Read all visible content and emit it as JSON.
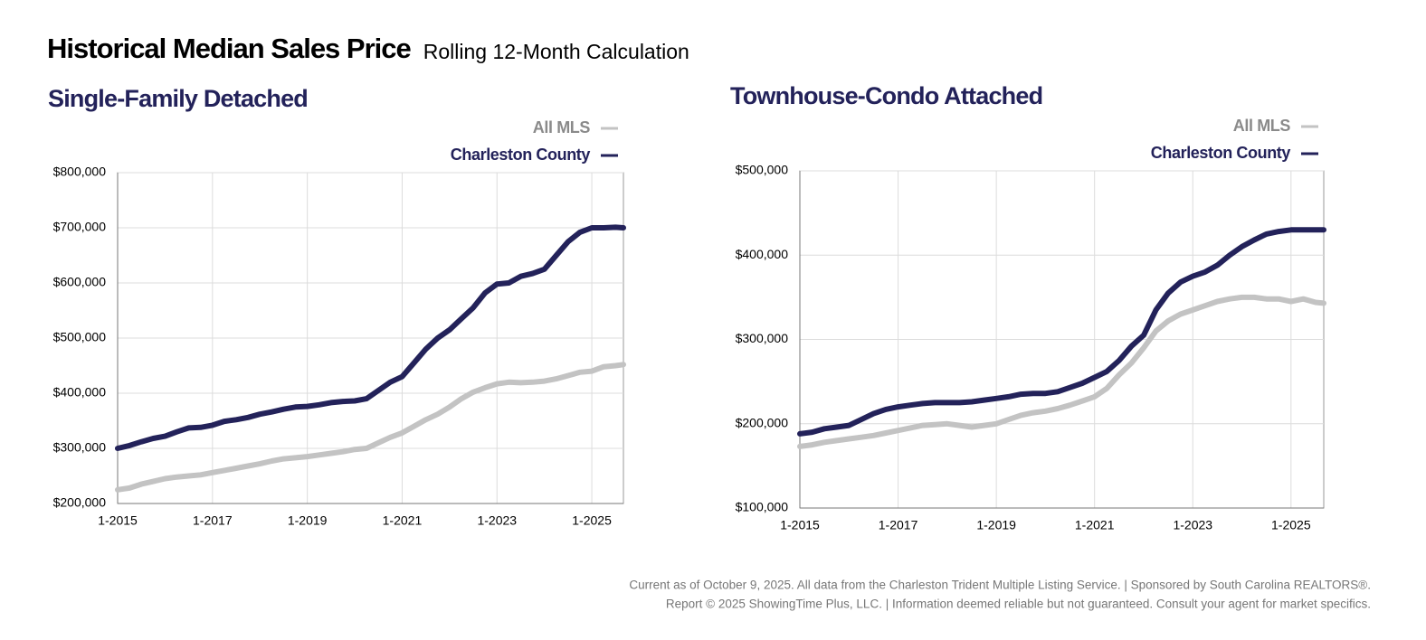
{
  "header": {
    "title": "Historical Median Sales Price",
    "subtitle": "Rolling 12-Month Calculation"
  },
  "footer": [
    "Current as of October 9, 2025. All data from the Charleston Trident Multiple Listing Service.  |  Sponsored by South Carolina REALTORS®.",
    "Report © 2025 ShowingTime Plus, LLC.  |  Information deemed reliable but not guaranteed. Consult your agent for market specifics."
  ],
  "chart_data": [
    {
      "type": "line",
      "title": "Single-Family Detached",
      "grid": true,
      "legend": "top-right",
      "x": [
        "1-2015",
        "4-2015",
        "7-2015",
        "10-2015",
        "1-2016",
        "4-2016",
        "7-2016",
        "10-2016",
        "1-2017",
        "4-2017",
        "7-2017",
        "10-2017",
        "1-2018",
        "4-2018",
        "7-2018",
        "10-2018",
        "1-2019",
        "4-2019",
        "7-2019",
        "10-2019",
        "1-2020",
        "4-2020",
        "7-2020",
        "10-2020",
        "1-2021",
        "4-2021",
        "7-2021",
        "10-2021",
        "1-2022",
        "4-2022",
        "7-2022",
        "10-2022",
        "1-2023",
        "4-2023",
        "7-2023",
        "10-2023",
        "1-2024",
        "4-2024",
        "7-2024",
        "10-2024",
        "1-2025",
        "4-2025",
        "7-2025",
        "9-2025"
      ],
      "series": [
        {
          "name": "All MLS",
          "color": "#c3c3c3",
          "label_color": "#8a8a8a",
          "values": [
            225000,
            228000,
            235000,
            240000,
            245000,
            248000,
            250000,
            252000,
            256000,
            260000,
            264000,
            268000,
            272000,
            277000,
            281000,
            283000,
            285000,
            288000,
            291000,
            294000,
            298000,
            300000,
            310000,
            320000,
            328000,
            340000,
            352000,
            362000,
            375000,
            390000,
            402000,
            410000,
            417000,
            420000,
            419000,
            420000,
            422000,
            426000,
            432000,
            438000,
            440000,
            448000,
            450000,
            452000
          ]
        },
        {
          "name": "Charleston County",
          "color": "#23225a",
          "label_color": "#23225a",
          "values": [
            300000,
            305000,
            312000,
            318000,
            322000,
            330000,
            337000,
            338000,
            342000,
            349000,
            352000,
            356000,
            362000,
            366000,
            371000,
            375000,
            376000,
            379000,
            383000,
            385000,
            386000,
            390000,
            405000,
            420000,
            430000,
            455000,
            480000,
            500000,
            515000,
            535000,
            555000,
            582000,
            598000,
            600000,
            612000,
            617000,
            625000,
            650000,
            675000,
            692000,
            700000,
            700000,
            701000,
            700000
          ]
        }
      ],
      "xlim": [
        "1-2015",
        "9-2025"
      ],
      "xticks": [
        "1-2015",
        "1-2017",
        "1-2019",
        "1-2021",
        "1-2023",
        "1-2025"
      ],
      "ylim": [
        200000,
        800000
      ],
      "yticks": [
        {
          "value": 200000,
          "label": "$200,000"
        },
        {
          "value": 300000,
          "label": "$300,000"
        },
        {
          "value": 400000,
          "label": "$400,000"
        },
        {
          "value": 500000,
          "label": "$500,000"
        },
        {
          "value": 600000,
          "label": "$600,000"
        },
        {
          "value": 700000,
          "label": "$700,000"
        },
        {
          "value": 800000,
          "label": "$800,000"
        }
      ]
    },
    {
      "type": "line",
      "title": "Townhouse-Condo Attached",
      "grid": true,
      "legend": "top-right",
      "x": [
        "1-2015",
        "4-2015",
        "7-2015",
        "10-2015",
        "1-2016",
        "4-2016",
        "7-2016",
        "10-2016",
        "1-2017",
        "4-2017",
        "7-2017",
        "10-2017",
        "1-2018",
        "4-2018",
        "7-2018",
        "10-2018",
        "1-2019",
        "4-2019",
        "7-2019",
        "10-2019",
        "1-2020",
        "4-2020",
        "7-2020",
        "10-2020",
        "1-2021",
        "4-2021",
        "7-2021",
        "10-2021",
        "1-2022",
        "4-2022",
        "7-2022",
        "10-2022",
        "1-2023",
        "4-2023",
        "7-2023",
        "10-2023",
        "1-2024",
        "4-2024",
        "7-2024",
        "10-2024",
        "1-2025",
        "4-2025",
        "7-2025",
        "9-2025"
      ],
      "series": [
        {
          "name": "All MLS",
          "color": "#c3c3c3",
          "label_color": "#8a8a8a",
          "values": [
            173000,
            175000,
            178000,
            180000,
            182000,
            184000,
            186000,
            189000,
            192000,
            195000,
            198000,
            199000,
            200000,
            198000,
            196000,
            198000,
            200000,
            205000,
            210000,
            213000,
            215000,
            218000,
            222000,
            227000,
            232000,
            242000,
            258000,
            272000,
            290000,
            310000,
            322000,
            330000,
            335000,
            340000,
            345000,
            348000,
            350000,
            350000,
            348000,
            348000,
            345000,
            348000,
            344000,
            343000
          ]
        },
        {
          "name": "Charleston County",
          "color": "#23225a",
          "label_color": "#23225a",
          "values": [
            188000,
            190000,
            194000,
            196000,
            198000,
            205000,
            212000,
            217000,
            220000,
            222000,
            224000,
            225000,
            225000,
            225000,
            226000,
            228000,
            230000,
            232000,
            235000,
            236000,
            236000,
            238000,
            243000,
            248000,
            255000,
            262000,
            275000,
            292000,
            305000,
            335000,
            355000,
            368000,
            375000,
            380000,
            388000,
            400000,
            410000,
            418000,
            425000,
            428000,
            430000,
            430000,
            430000,
            430000
          ]
        }
      ],
      "xlim": [
        "1-2015",
        "9-2025"
      ],
      "xticks": [
        "1-2015",
        "1-2017",
        "1-2019",
        "1-2021",
        "1-2023",
        "1-2025"
      ],
      "ylim": [
        100000,
        500000
      ],
      "yticks": [
        {
          "value": 100000,
          "label": "$100,000"
        },
        {
          "value": 200000,
          "label": "$200,000"
        },
        {
          "value": 300000,
          "label": "$300,000"
        },
        {
          "value": 400000,
          "label": "$400,000"
        },
        {
          "value": 500000,
          "label": "$500,000"
        }
      ]
    }
  ]
}
